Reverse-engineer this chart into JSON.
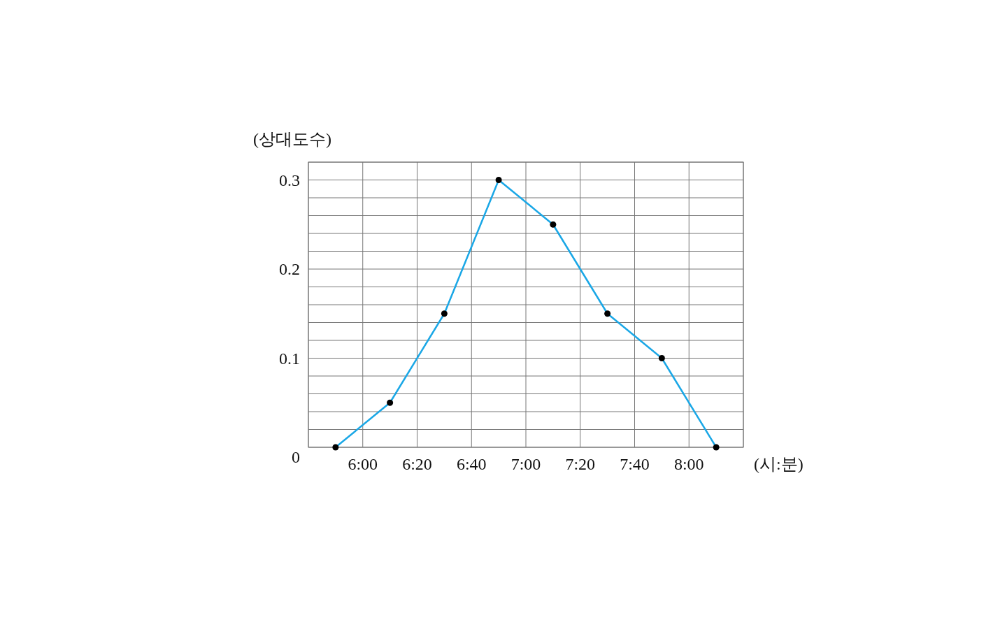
{
  "chart_data": {
    "type": "line",
    "xlabel": "(시:분)",
    "ylabel": "(상대도수)",
    "xlim": [
      5.6667,
      8.3333
    ],
    "ylim": [
      0,
      0.32
    ],
    "xticks": [
      {
        "value": 5.6667,
        "label": null
      },
      {
        "value": 6,
        "label": "6:00"
      },
      {
        "value": 6.3333,
        "label": "6:20"
      },
      {
        "value": 6.6667,
        "label": "6:40"
      },
      {
        "value": 7,
        "label": "7:00"
      },
      {
        "value": 7.3333,
        "label": "7:20"
      },
      {
        "value": 7.6667,
        "label": "7:40"
      },
      {
        "value": 8,
        "label": "8:00"
      },
      {
        "value": 8.3333,
        "label": null
      }
    ],
    "yticks": [
      0,
      {
        "value": 0.02,
        "label": null
      },
      {
        "value": 0.04,
        "label": null
      },
      {
        "value": 0.06,
        "label": null
      },
      {
        "value": 0.08,
        "label": null
      },
      {
        "value": 0.1,
        "label": "0.1"
      },
      {
        "value": 0.12,
        "label": null
      },
      {
        "value": 0.14,
        "label": null
      },
      {
        "value": 0.16,
        "label": null
      },
      {
        "value": 0.18,
        "label": null
      },
      {
        "value": 0.2,
        "label": "0.2"
      },
      {
        "value": 0.22,
        "label": null
      },
      {
        "value": 0.24,
        "label": null
      },
      {
        "value": 0.26,
        "label": null
      },
      {
        "value": 0.28,
        "label": null
      },
      {
        "value": 0.3,
        "label": "0.3"
      },
      {
        "value": 0.32,
        "label": null
      }
    ],
    "grid": true,
    "marker": "circle",
    "line_style": "solid",
    "x": [
      5.8333,
      6.1667,
      6.5,
      6.8333,
      7.1667,
      7.5,
      7.8333,
      8.1667
    ],
    "series": [
      {
        "color": "#1aa7e6",
        "values": [
          0,
          0.05,
          0.15,
          0.3,
          0.25,
          0.15,
          0.1,
          0
        ]
      }
    ]
  }
}
